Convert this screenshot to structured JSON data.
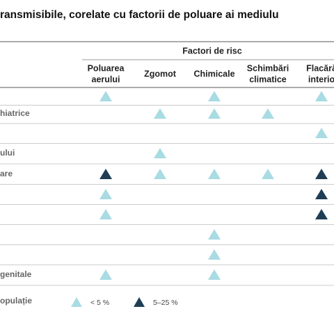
{
  "title": "ransmisibile, corelate cu factorii de poluare ai mediulu",
  "table": {
    "group_header": "Factori de risc",
    "columns": [
      [
        "Poluarea",
        "aerului"
      ],
      [
        "Zgomot"
      ],
      [
        "Chimicale"
      ],
      [
        "Schimbări",
        "climatice"
      ],
      [
        "Flacără",
        "interio"
      ]
    ],
    "rows": [
      {
        "label": null,
        "cells": [
          0,
          null,
          0,
          null,
          0
        ]
      },
      {
        "label": "hiatrice",
        "cells": [
          null,
          0,
          0,
          0,
          null
        ]
      },
      {
        "label": null,
        "cells": [
          null,
          null,
          null,
          null,
          0
        ]
      },
      {
        "label": "ului",
        "cells": [
          null,
          0,
          null,
          null,
          null
        ]
      },
      {
        "label": "are",
        "cells": [
          1,
          0,
          0,
          0,
          1
        ]
      },
      {
        "label": null,
        "cells": [
          0,
          null,
          null,
          null,
          1
        ]
      },
      {
        "label": null,
        "cells": [
          0,
          null,
          null,
          null,
          1
        ]
      },
      {
        "label": null,
        "cells": [
          null,
          null,
          0,
          null,
          null
        ]
      },
      {
        "label": null,
        "cells": [
          null,
          null,
          0,
          null,
          null
        ]
      },
      {
        "label": "genitale",
        "cells": [
          0,
          null,
          0,
          null,
          null
        ]
      }
    ]
  },
  "legend": {
    "label": "opulație",
    "items": [
      {
        "label": "< 5 %",
        "color": "#a9dbe3"
      },
      {
        "label": "5–25 %",
        "color": "#1f3e55"
      }
    ]
  }
}
